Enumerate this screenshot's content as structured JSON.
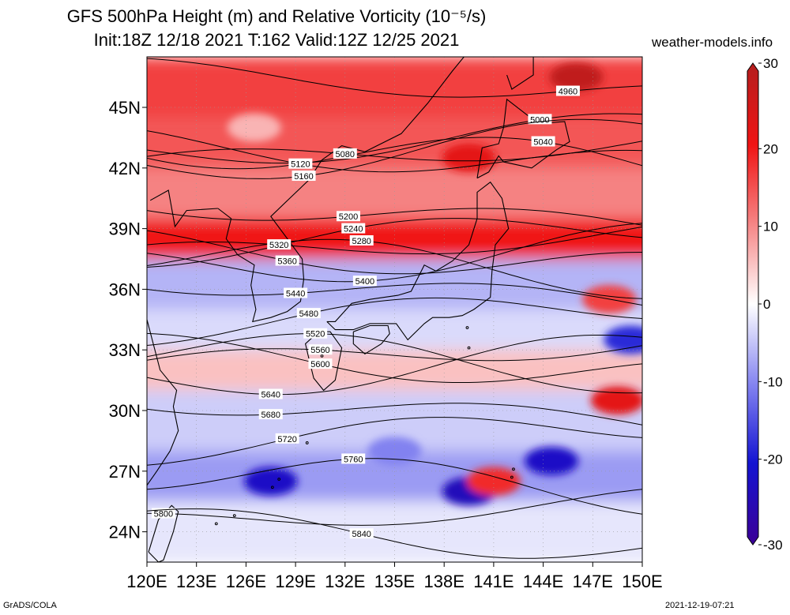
{
  "title": {
    "line1": "GFS 500hPa Height (m) and Relative Vorticity (10⁻⁵/s)",
    "line2": "Init:18Z 12/18 2021 T:162 Valid:12Z 12/25 2021"
  },
  "site": "weather-models.info",
  "footer": {
    "left": "GrADS/COLA",
    "right": "2021-12-19-07:21"
  },
  "map": {
    "lon_range": [
      120,
      150
    ],
    "lat_range": [
      22.5,
      47.5
    ],
    "lat_ticks": [
      {
        "lat": 45,
        "label": "45N"
      },
      {
        "lat": 42,
        "label": "42N"
      },
      {
        "lat": 39,
        "label": "39N"
      },
      {
        "lat": 36,
        "label": "36N"
      },
      {
        "lat": 33,
        "label": "33N"
      },
      {
        "lat": 30,
        "label": "30N"
      },
      {
        "lat": 27,
        "label": "27N"
      },
      {
        "lat": 24,
        "label": "24N"
      }
    ],
    "lon_ticks": [
      {
        "lon": 120,
        "label": "120E"
      },
      {
        "lon": 123,
        "label": "123E"
      },
      {
        "lon": 126,
        "label": "126E"
      },
      {
        "lon": 129,
        "label": "129E"
      },
      {
        "lon": 132,
        "label": "132E"
      },
      {
        "lon": 135,
        "label": "135E"
      },
      {
        "lon": 138,
        "label": "138E"
      },
      {
        "lon": 141,
        "label": "141E"
      },
      {
        "lon": 144,
        "label": "144E"
      },
      {
        "lon": 147,
        "label": "147E"
      },
      {
        "lon": 150,
        "label": "150E"
      }
    ],
    "vorticity_bands": [
      {
        "lat_top": 47.5,
        "lat_bot": 44.5,
        "level": 16
      },
      {
        "lat_top": 44.5,
        "lat_bot": 42.0,
        "level": 14
      },
      {
        "lat_top": 42.0,
        "lat_bot": 39.5,
        "level": 10
      },
      {
        "lat_top": 39.5,
        "lat_bot": 37.5,
        "level": 20
      },
      {
        "lat_top": 37.5,
        "lat_bot": 35.0,
        "level": -6
      },
      {
        "lat_top": 35.0,
        "lat_bot": 33.0,
        "level": -3
      },
      {
        "lat_top": 33.0,
        "lat_bot": 31.0,
        "level": 5
      },
      {
        "lat_top": 31.0,
        "lat_bot": 28.0,
        "level": -4
      },
      {
        "lat_top": 28.0,
        "lat_bot": 25.5,
        "level": -8
      },
      {
        "lat_top": 25.5,
        "lat_bot": 22.5,
        "level": -2
      }
    ],
    "vorticity_blobs": [
      {
        "lon": 126.5,
        "lat": 44.0,
        "level": 6
      },
      {
        "lon": 139.5,
        "lat": 42.5,
        "level": 22
      },
      {
        "lon": 146.0,
        "lat": 46.5,
        "level": 28
      },
      {
        "lon": 127.5,
        "lat": 26.5,
        "level": -22
      },
      {
        "lon": 139.5,
        "lat": 26.0,
        "level": -24
      },
      {
        "lon": 144.5,
        "lat": 27.5,
        "level": -22
      },
      {
        "lon": 148.5,
        "lat": 30.5,
        "level": 22
      },
      {
        "lon": 148.0,
        "lat": 35.5,
        "level": 16
      },
      {
        "lon": 149.3,
        "lat": 33.5,
        "level": -18
      },
      {
        "lon": 141.0,
        "lat": 26.5,
        "level": 18
      },
      {
        "lon": 135.0,
        "lat": 28.0,
        "level": -10
      }
    ],
    "height_contours": [
      {
        "value": "4960",
        "label_lon": 145.5,
        "label_lat": 45.8
      },
      {
        "value": "5000",
        "label_lon": 143.8,
        "label_lat": 44.4
      },
      {
        "value": "5040",
        "label_lon": 144.0,
        "label_lat": 43.3
      },
      {
        "value": "5080",
        "label_lon": 132.0,
        "label_lat": 42.7
      },
      {
        "value": "5120",
        "label_lon": 129.3,
        "label_lat": 42.2
      },
      {
        "value": "5160",
        "label_lon": 129.5,
        "label_lat": 41.6
      },
      {
        "value": "5200",
        "label_lon": 132.2,
        "label_lat": 39.6
      },
      {
        "value": "5240",
        "label_lon": 132.5,
        "label_lat": 39.0
      },
      {
        "value": "5280",
        "label_lon": 133.0,
        "label_lat": 38.4
      },
      {
        "value": "5320",
        "label_lon": 128.0,
        "label_lat": 38.2
      },
      {
        "value": "5360",
        "label_lon": 128.5,
        "label_lat": 37.4
      },
      {
        "value": "5400",
        "label_lon": 133.2,
        "label_lat": 36.4
      },
      {
        "value": "5440",
        "label_lon": 129.0,
        "label_lat": 35.8
      },
      {
        "value": "5480",
        "label_lon": 129.8,
        "label_lat": 34.8
      },
      {
        "value": "5520",
        "label_lon": 130.2,
        "label_lat": 33.8
      },
      {
        "value": "5560",
        "label_lon": 130.5,
        "label_lat": 33.0
      },
      {
        "value": "5600",
        "label_lon": 130.5,
        "label_lat": 32.3
      },
      {
        "value": "5640",
        "label_lon": 127.5,
        "label_lat": 30.8
      },
      {
        "value": "5680",
        "label_lon": 127.5,
        "label_lat": 29.8
      },
      {
        "value": "5720",
        "label_lon": 128.5,
        "label_lat": 28.6
      },
      {
        "value": "5760",
        "label_lon": 132.5,
        "label_lat": 27.6
      },
      {
        "value": "5800",
        "label_lon": 121.0,
        "label_lat": 24.9
      },
      {
        "value": "5840",
        "label_lon": 133.0,
        "label_lat": 23.9
      }
    ],
    "colorbar": {
      "labels": [
        {
          "value": 30,
          "label": "30"
        },
        {
          "value": 20,
          "label": "20"
        },
        {
          "value": 10,
          "label": "10"
        },
        {
          "value": 0,
          "label": "0"
        },
        {
          "value": -10,
          "label": "-10"
        },
        {
          "value": -20,
          "label": "-20"
        },
        {
          "value": -30,
          "label": "-30"
        }
      ]
    }
  }
}
